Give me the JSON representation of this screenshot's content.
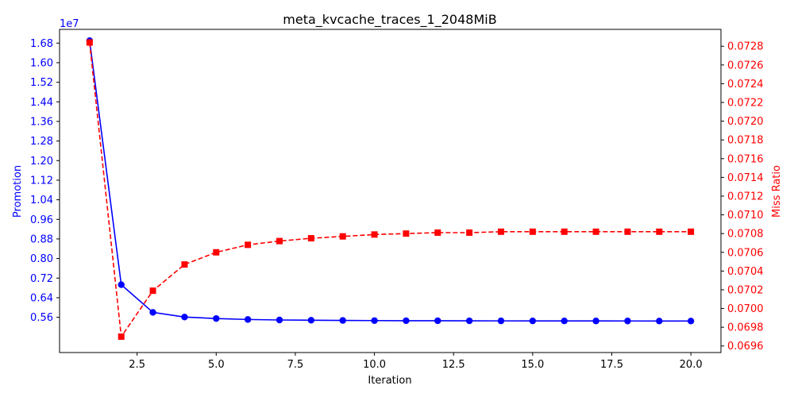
{
  "chart_data": {
    "type": "line",
    "title": "meta_kvcache_traces_1_2048MiB",
    "xlabel": "Iteration",
    "ylabel_left": "Promotion",
    "ylabel_right": "Miss Ratio",
    "left_offset_label": "1e7",
    "colors": {
      "left": "#0000ff",
      "right": "#ff0000",
      "axis": "#000000"
    },
    "x": [
      1,
      2,
      3,
      4,
      5,
      6,
      7,
      8,
      9,
      10,
      11,
      12,
      13,
      14,
      15,
      16,
      17,
      18,
      19,
      20
    ],
    "xlim": [
      0.05,
      20.95
    ],
    "xticks": [
      2.5,
      5.0,
      7.5,
      10.0,
      12.5,
      15.0,
      17.5,
      20.0
    ],
    "xtick_labels": [
      "2.5",
      "5.0",
      "7.5",
      "10.0",
      "12.5",
      "15.0",
      "17.5",
      "20.0"
    ],
    "series": [
      {
        "axis": "left",
        "style": "solid",
        "marker": "circle",
        "values": [
          1.69,
          0.693,
          0.58,
          0.561,
          0.555,
          0.551,
          0.549,
          0.548,
          0.547,
          0.5465,
          0.546,
          0.5458,
          0.5455,
          0.5453,
          0.5452,
          0.5451,
          0.545,
          0.5449,
          0.5448,
          0.5447
        ]
      },
      {
        "axis": "right",
        "style": "dashed",
        "marker": "square",
        "values": [
          0.07284,
          0.0697,
          0.07019,
          0.07047,
          0.0706,
          0.07068,
          0.07072,
          0.07075,
          0.07077,
          0.07079,
          0.0708,
          0.07081,
          0.07081,
          0.07082,
          0.07082,
          0.07082,
          0.07082,
          0.07082,
          0.07082,
          0.07082
        ]
      }
    ],
    "ylim_left": [
      0.416,
      1.736
    ],
    "yticks_left": [
      "0.56",
      "0.64",
      "0.72",
      "0.80",
      "0.88",
      "0.96",
      "1.04",
      "1.12",
      "1.20",
      "1.28",
      "1.36",
      "1.44",
      "1.52",
      "1.60",
      "1.68"
    ],
    "ylim_right": [
      0.06953,
      0.07298
    ],
    "yticks_right": [
      "0.0696",
      "0.0698",
      "0.0700",
      "0.0702",
      "0.0704",
      "0.0706",
      "0.0708",
      "0.0710",
      "0.0712",
      "0.0714",
      "0.0716",
      "0.0718",
      "0.0720",
      "0.0722",
      "0.0724",
      "0.0726",
      "0.0728"
    ],
    "grid": false,
    "legend": "none"
  }
}
